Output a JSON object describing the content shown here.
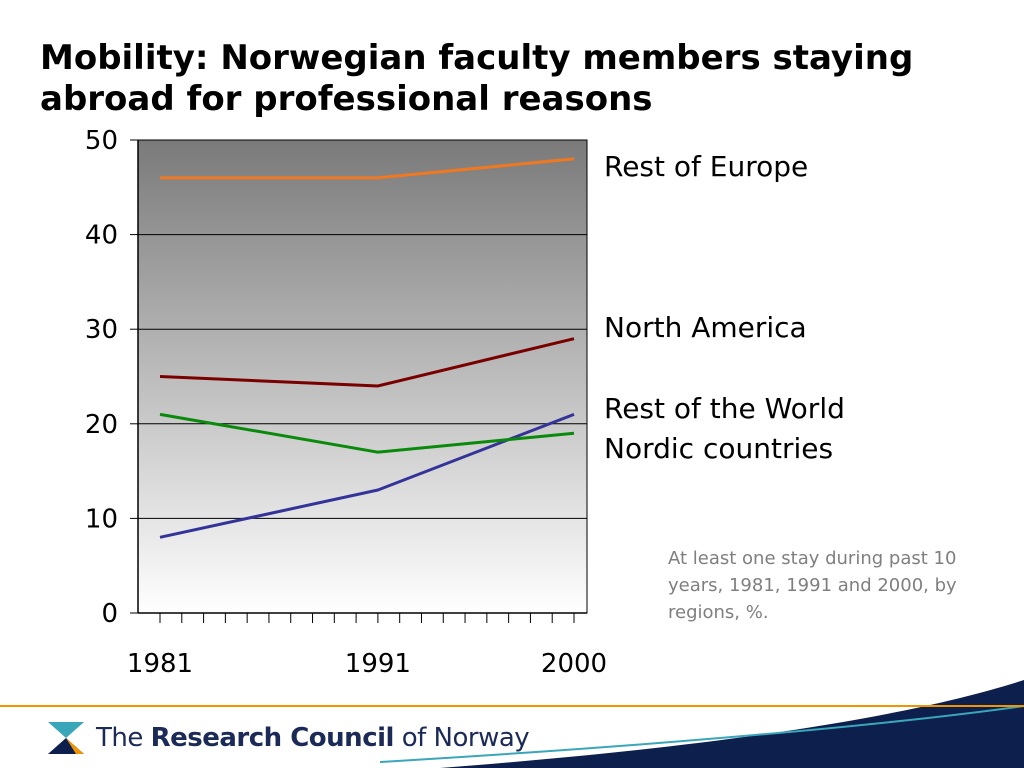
{
  "slide": {
    "title": "Mobility: Norwegian faculty members staying abroad for professional reasons",
    "note": "At least one stay during past 10 years, 1981, 1991 and 2000, by regions, %."
  },
  "footer": {
    "brand_prefix": "The ",
    "brand_bold": "Research Council",
    "brand_suffix": " of Norway",
    "logo_icon": "research-council-logo-icon",
    "colors": {
      "navy": "#0d1f4d",
      "orange": "#f29400",
      "teal": "#3aa6b9"
    }
  },
  "chart_data": {
    "type": "line",
    "title": "",
    "xlabel": "",
    "ylabel": "",
    "x": [
      1981,
      1991,
      2000
    ],
    "xticks": [
      "1981",
      "1991",
      "2000"
    ],
    "yticks": [
      "0",
      "10",
      "20",
      "30",
      "40",
      "50"
    ],
    "ylim": [
      0,
      50
    ],
    "grid": true,
    "legend": "right, labels beside lines",
    "series": [
      {
        "name": "Rest of Europe",
        "values": [
          46,
          46,
          48
        ],
        "color": "#f07820"
      },
      {
        "name": "North America",
        "values": [
          25,
          24,
          29
        ],
        "color": "#7a0000"
      },
      {
        "name": "Rest of the World",
        "values": [
          8,
          13,
          21
        ],
        "color": "#333399"
      },
      {
        "name": "Nordic countries",
        "values": [
          21,
          17,
          19
        ],
        "color": "#0a8a0a"
      }
    ]
  }
}
